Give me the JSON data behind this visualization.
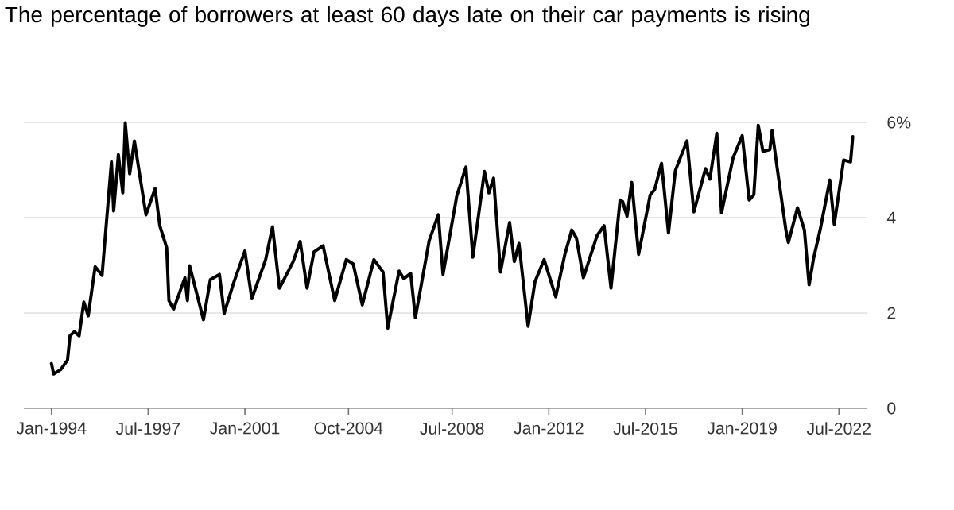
{
  "chart_data": {
    "type": "line",
    "title": "The percentage of borrowers at least 60 days late on their car payments is rising",
    "x": [
      "1994-01",
      "1994-02",
      "1994-05",
      "1994-08",
      "1994-09",
      "1994-11",
      "1995-01",
      "1995-03",
      "1995-05",
      "1995-08",
      "1995-11",
      "1996-03",
      "1996-04",
      "1996-06",
      "1996-08",
      "1996-09",
      "1996-11",
      "1997-01",
      "1997-06",
      "1997-10",
      "1997-12",
      "1998-03",
      "1998-04",
      "1998-06",
      "1998-11",
      "1998-12",
      "1999-01",
      "1999-07",
      "1999-10",
      "2000-02",
      "2000-04",
      "2000-08",
      "2001-01",
      "2001-04",
      "2001-10",
      "2002-01",
      "2002-04",
      "2002-10",
      "2003-01",
      "2003-04",
      "2003-07",
      "2003-11",
      "2004-04",
      "2004-09",
      "2004-12",
      "2005-04",
      "2005-09",
      "2006-01",
      "2006-03",
      "2006-08",
      "2006-10",
      "2007-01",
      "2007-03",
      "2007-09",
      "2008-01",
      "2008-03",
      "2008-09",
      "2009-01",
      "2009-04",
      "2009-09",
      "2009-11",
      "2010-01",
      "2010-04",
      "2010-08",
      "2010-10",
      "2010-12",
      "2011-04",
      "2011-07",
      "2011-11",
      "2012-04",
      "2012-08",
      "2012-11",
      "2013-01",
      "2013-04",
      "2013-10",
      "2014-01",
      "2014-04",
      "2014-08",
      "2014-09",
      "2014-11",
      "2015-01",
      "2015-04",
      "2015-09",
      "2015-11",
      "2016-02",
      "2016-05",
      "2016-08",
      "2017-01",
      "2017-04",
      "2017-09",
      "2017-11",
      "2018-02",
      "2018-04",
      "2018-09",
      "2019-01",
      "2019-04",
      "2019-06",
      "2019-08",
      "2019-10",
      "2020-01",
      "2020-02",
      "2020-04",
      "2020-08",
      "2020-09",
      "2021-01",
      "2021-04",
      "2021-06",
      "2021-08",
      "2021-11",
      "2022-03",
      "2022-05",
      "2022-09",
      "2022-12",
      "2023-01"
    ],
    "values": [
      0.94,
      0.72,
      0.81,
      1.01,
      1.52,
      1.61,
      1.52,
      2.23,
      1.94,
      2.97,
      2.79,
      5.17,
      4.14,
      5.32,
      4.52,
      5.99,
      4.92,
      5.61,
      4.06,
      4.61,
      3.83,
      3.37,
      2.26,
      2.08,
      2.74,
      2.26,
      2.99,
      1.86,
      2.7,
      2.81,
      1.99,
      2.61,
      3.3,
      2.3,
      3.12,
      3.81,
      2.52,
      3.08,
      3.5,
      2.52,
      3.28,
      3.41,
      2.26,
      3.12,
      3.03,
      2.17,
      3.12,
      2.86,
      1.68,
      2.88,
      2.72,
      2.83,
      1.9,
      3.52,
      4.06,
      2.81,
      4.46,
      5.06,
      3.17,
      4.97,
      4.52,
      4.83,
      2.86,
      3.9,
      3.08,
      3.46,
      1.72,
      2.66,
      3.12,
      2.34,
      3.23,
      3.74,
      3.57,
      2.74,
      3.63,
      3.83,
      2.52,
      4.37,
      4.34,
      4.03,
      4.74,
      3.23,
      4.48,
      4.59,
      5.14,
      3.68,
      4.99,
      5.61,
      4.12,
      5.03,
      4.81,
      5.77,
      4.1,
      5.26,
      5.72,
      4.37,
      4.48,
      5.94,
      5.39,
      5.43,
      5.83,
      5.1,
      3.74,
      3.48,
      4.21,
      3.74,
      2.59,
      3.14,
      3.77,
      4.79,
      3.86,
      5.21,
      5.17,
      5.7
    ],
    "color": "#000000",
    "xlim": [
      "1993-01",
      "2023-07"
    ],
    "xticks": [
      {
        "value": "1994-01",
        "label": "Jan-1994"
      },
      {
        "value": "1997-07",
        "label": "Jul-1997"
      },
      {
        "value": "2001-01",
        "label": "Jan-2001"
      },
      {
        "value": "2004-10",
        "label": "Oct-2004"
      },
      {
        "value": "2008-07",
        "label": "Jul-2008"
      },
      {
        "value": "2012-01",
        "label": "Jan-2012"
      },
      {
        "value": "2015-07",
        "label": "Jul-2015"
      },
      {
        "value": "2019-01",
        "label": "Jan-2019"
      },
      {
        "value": "2022-07",
        "label": "Jul-2022"
      }
    ],
    "ylim": [
      0,
      6
    ],
    "yticks": [
      0,
      2,
      4,
      {
        "value": 6,
        "label": "6%"
      }
    ],
    "grid": "y"
  }
}
